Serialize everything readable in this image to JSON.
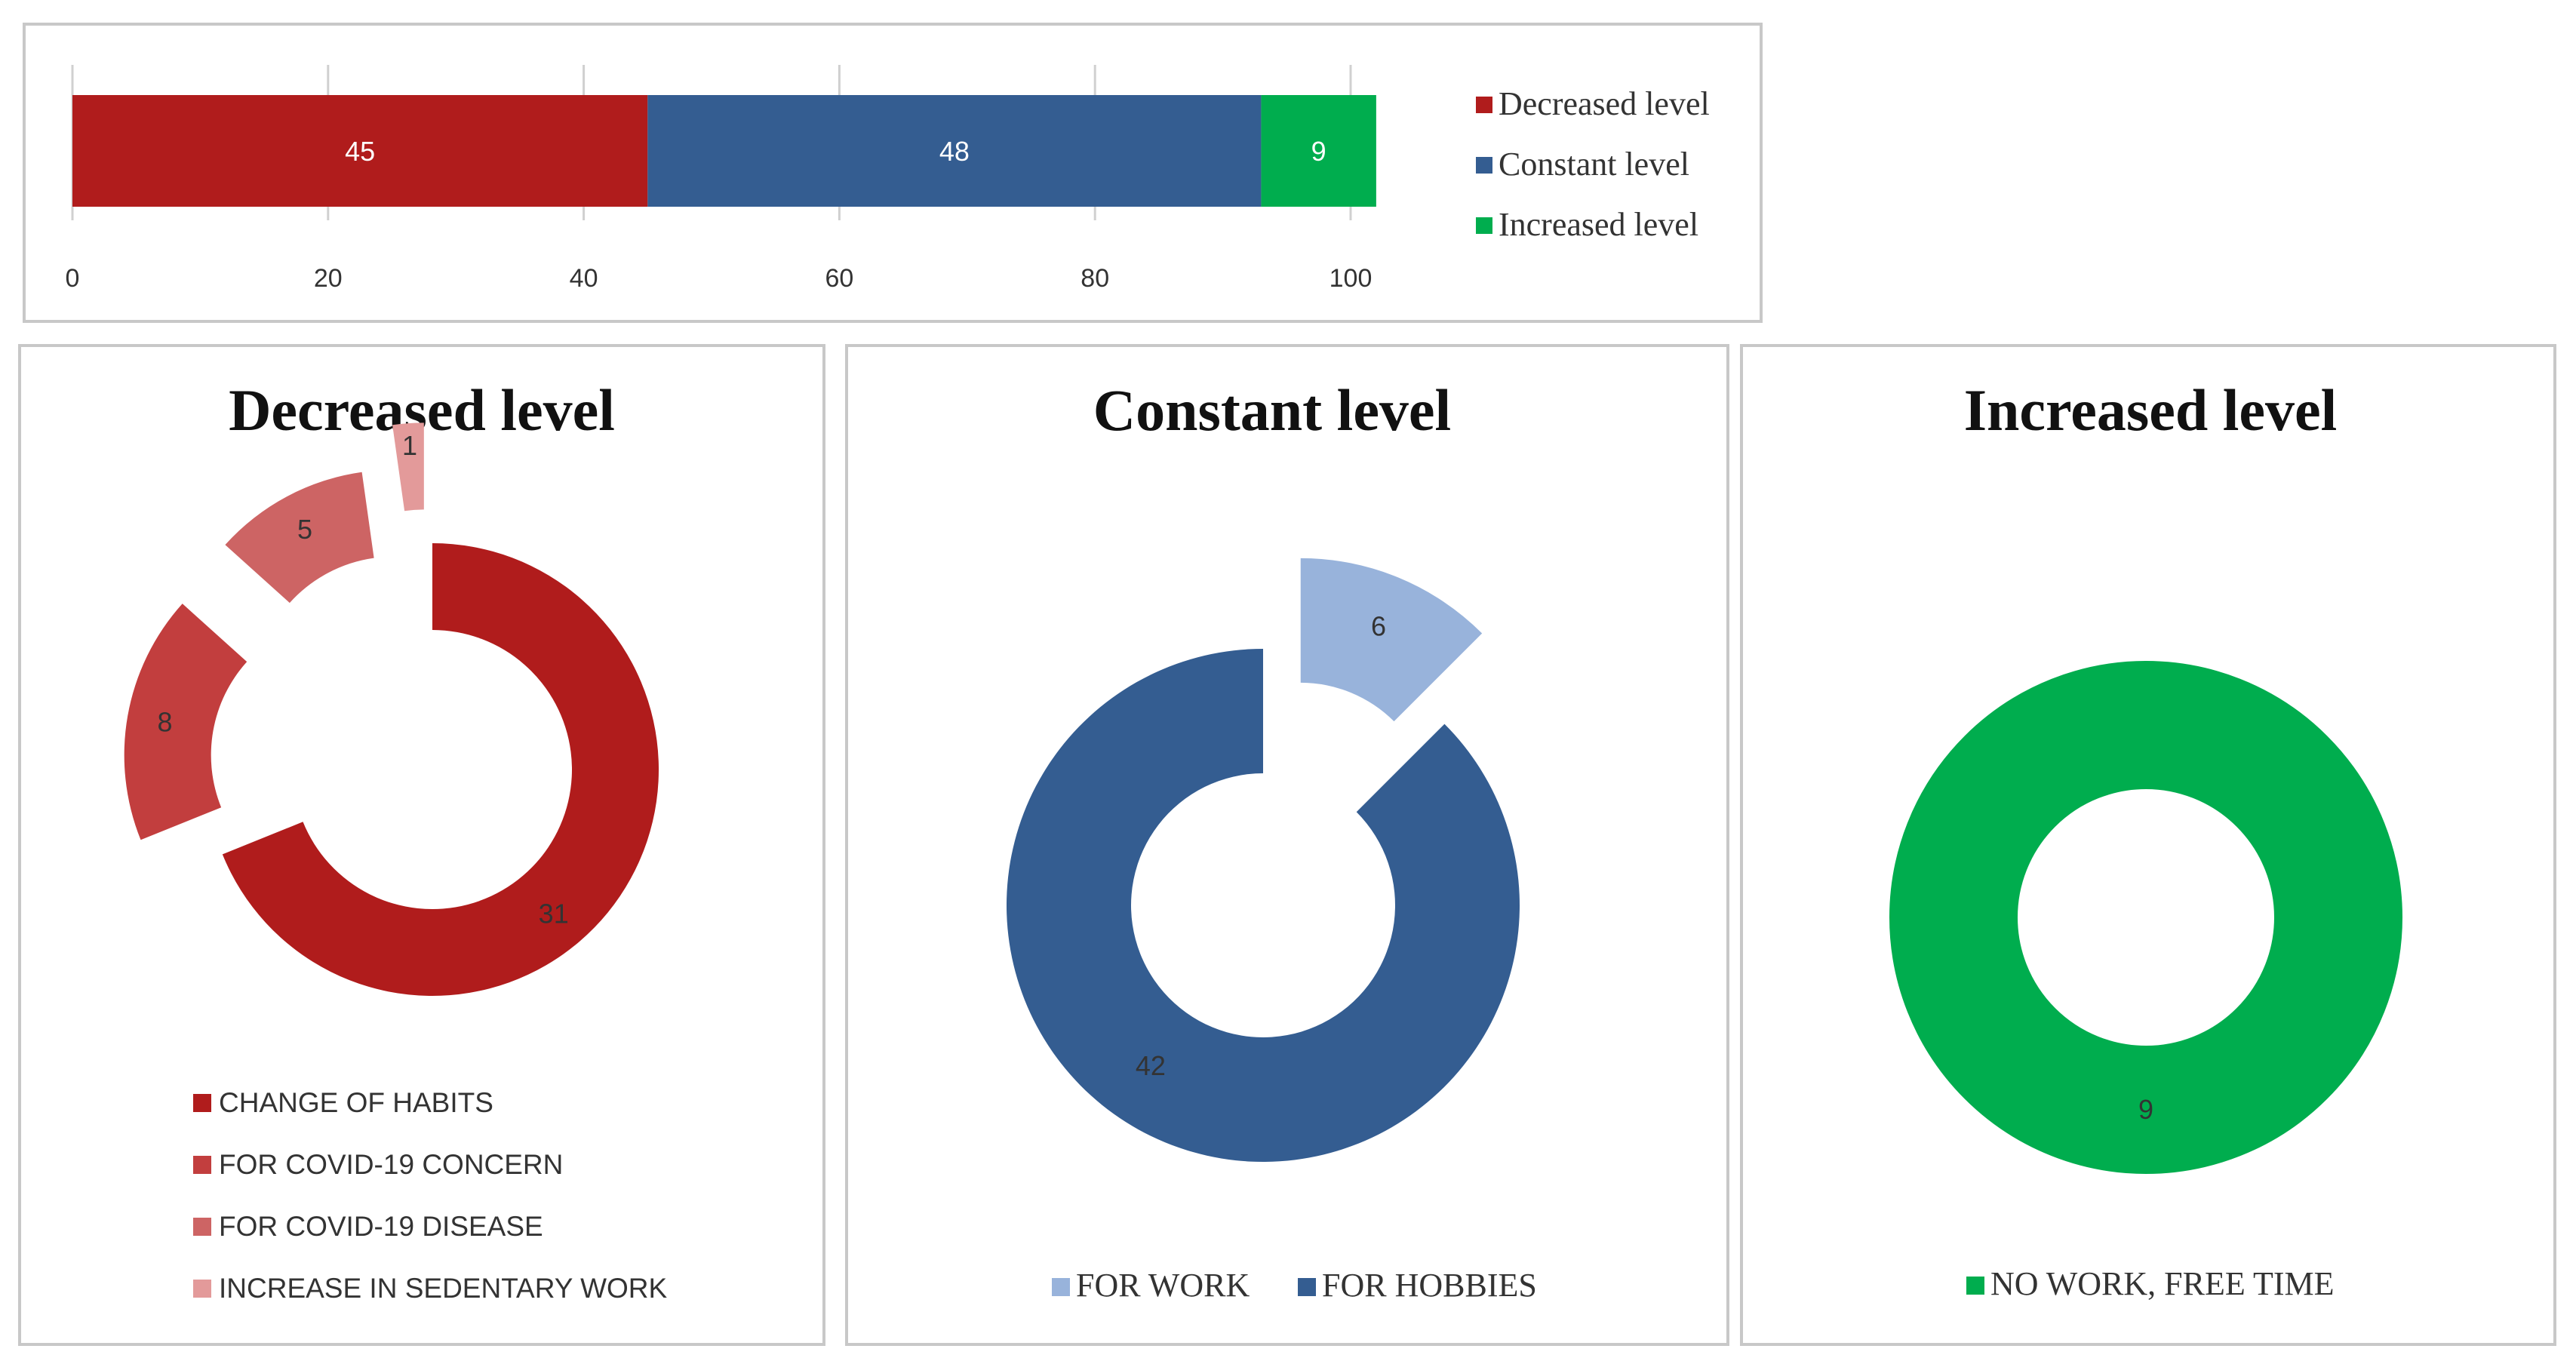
{
  "chart_data": [
    {
      "type": "bar",
      "orientation": "horizontal-stacked",
      "categories": [
        ""
      ],
      "series": [
        {
          "name": "Decreased level",
          "values": [
            45
          ],
          "color": "#b01c1c"
        },
        {
          "name": "Constant level",
          "values": [
            48
          ],
          "color": "#345d91"
        },
        {
          "name": "Increased level",
          "values": [
            9
          ],
          "color": "#00ad4e"
        }
      ],
      "xlim": [
        0,
        100
      ],
      "xticks": [
        "0",
        "20",
        "40",
        "60",
        "80",
        "100"
      ],
      "grid": true,
      "legend": "right"
    },
    {
      "type": "pie",
      "variant": "exploded-donut",
      "title": "Decreased level",
      "slices": [
        {
          "label": "CHANGE OF HABITS",
          "value": 31,
          "color": "#b01c1c"
        },
        {
          "label": "FOR COVID-19 CONCERN",
          "value": 8,
          "color": "#c23e3e"
        },
        {
          "label": "FOR COVID-19 DISEASE",
          "value": 5,
          "color": "#cd6464"
        },
        {
          "label": "INCREASE IN SEDENTARY WORK",
          "value": 1,
          "color": "#e39a9a"
        }
      ],
      "legend": "bottom"
    },
    {
      "type": "pie",
      "variant": "exploded-donut",
      "title": "Constant level",
      "slices": [
        {
          "label": "FOR WORK",
          "value": 6,
          "color": "#98b3db"
        },
        {
          "label": "FOR HOBBIES",
          "value": 42,
          "color": "#345d91"
        }
      ],
      "legend": "bottom"
    },
    {
      "type": "pie",
      "variant": "donut",
      "title": "Increased level",
      "slices": [
        {
          "label": "NO WORK, FREE TIME",
          "value": 9,
          "color": "#00ad4e"
        }
      ],
      "legend": "bottom"
    }
  ]
}
